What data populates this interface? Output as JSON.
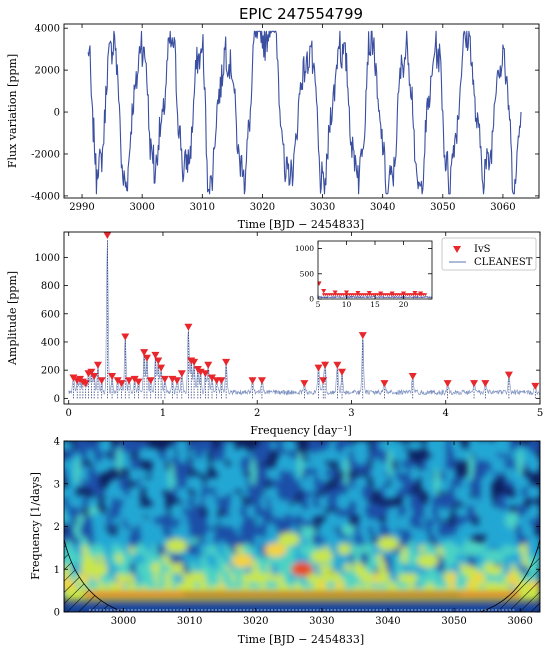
{
  "figure": {
    "title": "EPIC 247554799"
  },
  "chart_data": [
    {
      "type": "line",
      "name": "light-curve",
      "xlabel": "Time [BJD − 2454833]",
      "ylabel": "Flux variation [ppm]",
      "xlim": [
        2987,
        3066
      ],
      "ylim": [
        -4100,
        4200
      ],
      "xticks": [
        2990,
        3000,
        3010,
        3020,
        3030,
        3040,
        3050,
        3060
      ],
      "yticks": [
        -4000,
        -2000,
        0,
        2000,
        4000
      ],
      "t_start": 2991,
      "t_end": 3063,
      "color": "#3b4fa0",
      "series_summary": "Quasi-periodic stochastic flux variation with amplitude about ±3800 ppm and dominant period near 2.4 days",
      "peaks": [
        {
          "x": 2991.0,
          "y": 2700
        },
        {
          "x": 2992.5,
          "y": -3000
        },
        {
          "x": 2995.3,
          "y": 3700
        },
        {
          "x": 2997.0,
          "y": -3200
        },
        {
          "x": 3000.0,
          "y": 3300
        },
        {
          "x": 3002.0,
          "y": -2600
        },
        {
          "x": 3005.0,
          "y": 3100
        },
        {
          "x": 3007.0,
          "y": -3000
        },
        {
          "x": 3010.0,
          "y": 3200
        },
        {
          "x": 3011.0,
          "y": -3300
        },
        {
          "x": 3014.0,
          "y": 3000
        },
        {
          "x": 3017.0,
          "y": -3000
        },
        {
          "x": 3019.0,
          "y": 3600
        },
        {
          "x": 3022.0,
          "y": 3800
        },
        {
          "x": 3024.0,
          "y": -3300
        },
        {
          "x": 3028.0,
          "y": 3100
        },
        {
          "x": 3030.0,
          "y": -3300
        },
        {
          "x": 3033.0,
          "y": 3200
        },
        {
          "x": 3036.0,
          "y": -3100
        },
        {
          "x": 3038.0,
          "y": 3200
        },
        {
          "x": 3041.0,
          "y": -3700
        },
        {
          "x": 3044.0,
          "y": 3300
        },
        {
          "x": 3046.0,
          "y": -3500
        },
        {
          "x": 3049.0,
          "y": 3200
        },
        {
          "x": 3051.0,
          "y": -3200
        },
        {
          "x": 3054.0,
          "y": 3400
        },
        {
          "x": 3057.0,
          "y": -3000
        },
        {
          "x": 3060.0,
          "y": 2900
        },
        {
          "x": 3062.0,
          "y": -3300
        },
        {
          "x": 3063.0,
          "y": 0
        }
      ]
    },
    {
      "type": "line",
      "name": "periodogram",
      "xlabel": "Frequency [day⁻¹]",
      "ylabel": "Amplitude [ppm]",
      "xlim": [
        -0.05,
        5.0
      ],
      "ylim": [
        -40,
        1180
      ],
      "xticks": [
        0,
        1,
        2,
        3,
        4,
        5
      ],
      "yticks": [
        0,
        200,
        400,
        600,
        800,
        1000
      ],
      "series": [
        {
          "name": "IvS",
          "marker": "triangle-down",
          "color": "#e8262b"
        },
        {
          "name": "CLEANEST",
          "marker": "line",
          "color": "#7a8fbf"
        }
      ],
      "peaks": [
        [
          0.05,
          120
        ],
        [
          0.09,
          100
        ],
        [
          0.12,
          110
        ],
        [
          0.15,
          90
        ],
        [
          0.18,
          80
        ],
        [
          0.21,
          150
        ],
        [
          0.24,
          160
        ],
        [
          0.27,
          130
        ],
        [
          0.31,
          210
        ],
        [
          0.35,
          100
        ],
        [
          0.41,
          1130
        ],
        [
          0.46,
          130
        ],
        [
          0.52,
          100
        ],
        [
          0.56,
          80
        ],
        [
          0.6,
          410
        ],
        [
          0.64,
          100
        ],
        [
          0.7,
          110
        ],
        [
          0.74,
          90
        ],
        [
          0.8,
          300
        ],
        [
          0.83,
          260
        ],
        [
          0.87,
          100
        ],
        [
          0.92,
          280
        ],
        [
          0.95,
          240
        ],
        [
          0.98,
          190
        ],
        [
          1.02,
          110
        ],
        [
          1.1,
          110
        ],
        [
          1.15,
          100
        ],
        [
          1.2,
          150
        ],
        [
          1.27,
          480
        ],
        [
          1.3,
          240
        ],
        [
          1.33,
          230
        ],
        [
          1.37,
          180
        ],
        [
          1.4,
          160
        ],
        [
          1.45,
          150
        ],
        [
          1.48,
          210
        ],
        [
          1.52,
          120
        ],
        [
          1.57,
          100
        ],
        [
          1.62,
          100
        ],
        [
          1.67,
          230
        ],
        [
          1.95,
          100
        ],
        [
          2.05,
          100
        ],
        [
          2.5,
          80
        ],
        [
          2.65,
          190
        ],
        [
          2.7,
          100
        ],
        [
          2.72,
          210
        ],
        [
          2.85,
          210
        ],
        [
          2.9,
          160
        ],
        [
          3.12,
          420
        ],
        [
          3.35,
          80
        ],
        [
          3.65,
          130
        ],
        [
          4.02,
          80
        ],
        [
          4.3,
          80
        ],
        [
          4.42,
          80
        ],
        [
          4.67,
          140
        ],
        [
          4.95,
          60
        ]
      ],
      "legend": {
        "location": "top-right"
      },
      "inset": {
        "xlim": [
          5,
          25
        ],
        "ylim": [
          0,
          1150
        ],
        "xticks": [
          5,
          10,
          15,
          20
        ],
        "yticks": [
          0,
          500,
          1000
        ],
        "peaks": [
          [
            5.2,
            260
          ],
          [
            6,
            110
          ],
          [
            8,
            80
          ],
          [
            10,
            80
          ],
          [
            12,
            70
          ],
          [
            14,
            70
          ],
          [
            16,
            60
          ],
          [
            18,
            60
          ],
          [
            20,
            60
          ],
          [
            22,
            70
          ],
          [
            23,
            60
          ]
        ]
      }
    },
    {
      "type": "heatmap",
      "name": "wavelet",
      "xlabel": "Time [BJD − 2454833]",
      "ylabel": "Frequency [1/days]",
      "xlim": [
        2991,
        3063
      ],
      "ylim": [
        0,
        4
      ],
      "xticks": [
        3000,
        3010,
        3020,
        3030,
        3040,
        3050,
        3060
      ],
      "yticks": [
        0,
        1,
        2,
        3,
        4
      ],
      "colormap": [
        "#0e1f5e",
        "#1f4fa8",
        "#22a7d4",
        "#4bd3c4",
        "#c9e64a",
        "#f4d23a",
        "#e84a1f",
        "#a01010"
      ],
      "dominant_frequency": 0.41,
      "cone_of_influence": true
    }
  ]
}
